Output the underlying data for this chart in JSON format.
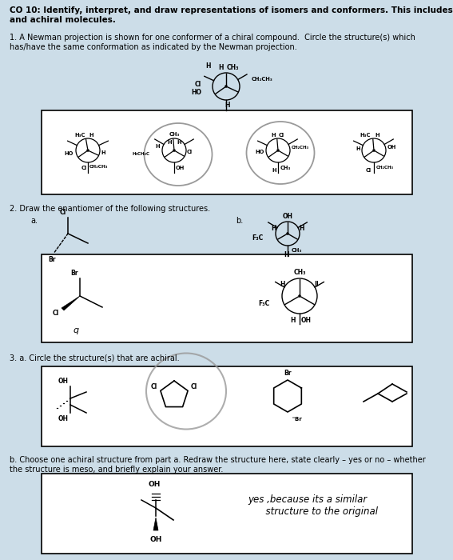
{
  "bg_color": "#ccdde8",
  "title_bold": "CO 10: Identify, interpret, and draw representations of isomers and conformers. This includes chiral\nand achiral molecules.",
  "q1_text": "1. A Newman projection is shown for one conformer of a chiral compound.  Circle the structure(s) which\nhas/have the same conformation as indicated by the Newman projection.",
  "q2_text": "2. Draw the enantiomer of the following structures.",
  "q3a_text": "3. a. Circle the structure(s) that are achiral.",
  "q3b_text": "b. Choose one achiral structure from part a. Redraw the structure here, state clearly – yes or no – whether\nthe structure is meso, and briefly explain your answer.",
  "answer_text": "yes ,because its a similar\n      structure to the original",
  "fontsize_title": 7.5,
  "fontsize_body": 7.0,
  "fontsize_mol": 5.5,
  "fontsize_mol_sm": 4.8
}
